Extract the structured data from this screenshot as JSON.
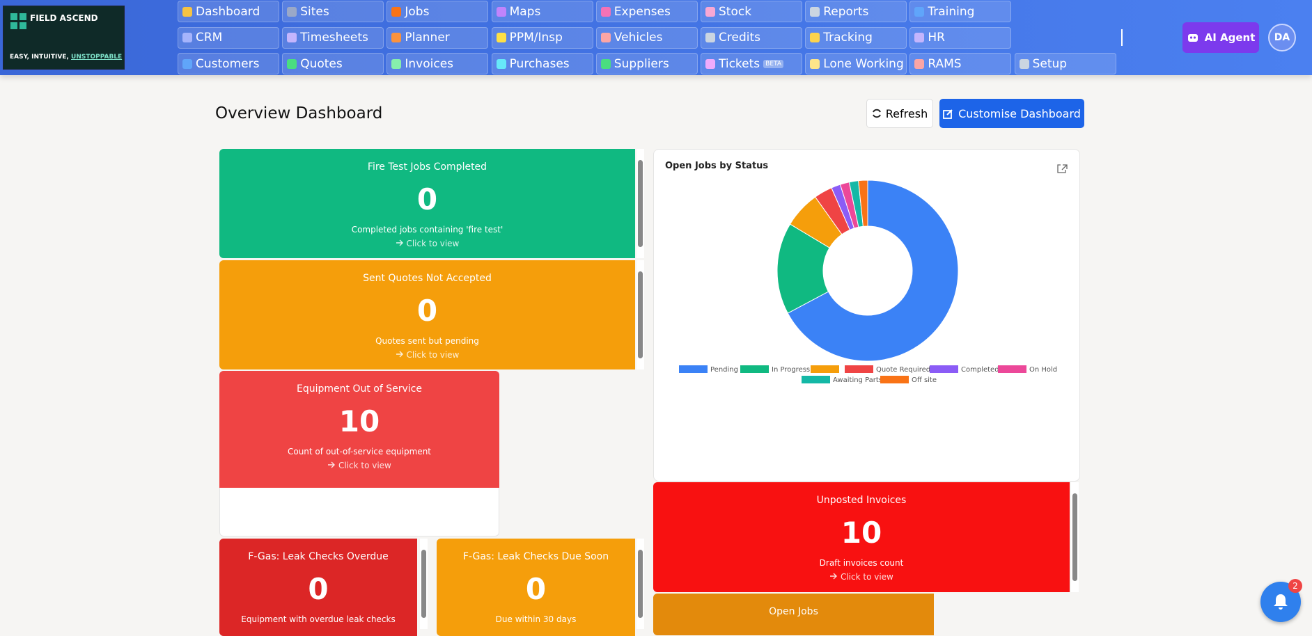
{
  "header": {
    "logo_name": "FIELD ASCEND",
    "logo_tagline": "EASY, INTUITIVE,",
    "logo_tagline_em": "UNSTOPPABLE",
    "nav": [
      [
        "Dashboard",
        "Sites",
        "Jobs",
        "Maps",
        "Expenses",
        "Stock",
        "Reports",
        "Training"
      ],
      [
        "CRM",
        "Timesheets",
        "Planner",
        "PPM/Insp",
        "Vehicles",
        "Credits",
        "Tracking",
        "HR"
      ],
      [
        "Customers",
        "Quotes",
        "Invoices",
        "Purchases",
        "Suppliers",
        "Tickets",
        "Lone Working",
        "RAMS",
        "Setup"
      ]
    ],
    "tickets_badge": "BETA",
    "ai_agent": "AI Agent",
    "avatar": "DA"
  },
  "dashboard": {
    "title": "Overview Dashboard",
    "refresh": "Refresh",
    "customise": "Customise Dashboard",
    "widgets": [
      {
        "title": "Fire Test Jobs Completed",
        "value": 0,
        "description": "Completed jobs containing 'fire test'",
        "link": "Click to view",
        "color": "#10b981"
      },
      {
        "title": "Sent Quotes Not Accepted",
        "value": 0,
        "description": "Quotes sent but pending",
        "link": "Click to view",
        "color": "#f59e0b"
      },
      {
        "title": "Equipment Out of Service",
        "value": 10,
        "description": "Count of out-of-service equipment",
        "link": "Click to view",
        "color": "#ef4444"
      },
      {
        "title": "F-Gas: Leak Checks Overdue",
        "value": 0,
        "description": "Equipment with overdue leak checks",
        "color": "#dc2626"
      },
      {
        "title": "F-Gas: Leak Checks Due Soon",
        "value": 0,
        "description": "Due within 30 days",
        "color": "#f59e0b"
      },
      {
        "title": "Unposted Invoices",
        "value": 10,
        "description": "Draft invoices count",
        "link": "Click to view",
        "color": "#f81111"
      },
      {
        "title": "Open Jobs",
        "color": "#e38a0c"
      }
    ],
    "notifications": 2
  },
  "chart_data": {
    "type": "donut",
    "title": "Open Jobs by Status",
    "categories": [
      "Pending",
      "In Progress",
      null,
      "Quote Required",
      "Completed",
      "On Hold",
      "Awaiting Parts",
      "Off site"
    ],
    "values": [
      41,
      10,
      4,
      2,
      1,
      1,
      1,
      1
    ],
    "colors": [
      "#3b82f6",
      "#10b981",
      "#f59e0b",
      "#ef4444",
      "#8b5cf6",
      "#ec4899",
      "#14b8a6",
      "#f97316"
    ]
  }
}
